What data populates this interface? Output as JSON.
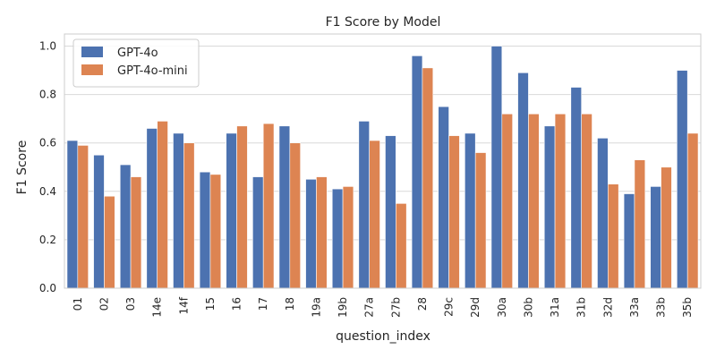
{
  "chart_data": {
    "type": "bar",
    "title": "F1 Score by Model",
    "xlabel": "question_index",
    "ylabel": "F1 Score",
    "ylim": [
      0,
      1.05
    ],
    "yticks": [
      "0.0",
      "0.2",
      "0.4",
      "0.6",
      "0.8",
      "1.0"
    ],
    "grid": "horizontal",
    "legend_position": "top-left",
    "categories": [
      "01",
      "02",
      "03",
      "14e",
      "14f",
      "15",
      "16",
      "17",
      "18",
      "19a",
      "19b",
      "27a",
      "27b",
      "28",
      "29c",
      "29d",
      "30a",
      "30b",
      "31a",
      "31b",
      "32d",
      "33a",
      "33b",
      "35b"
    ],
    "series": [
      {
        "name": "GPT-4o",
        "color": "#4c72b0",
        "values": [
          0.61,
          0.55,
          0.51,
          0.66,
          0.64,
          0.48,
          0.64,
          0.46,
          0.67,
          0.45,
          0.41,
          0.69,
          0.63,
          0.96,
          0.75,
          0.64,
          1.0,
          0.89,
          0.67,
          0.83,
          0.62,
          0.39,
          0.42,
          0.9
        ]
      },
      {
        "name": "GPT-4o-mini",
        "color": "#dd8452",
        "values": [
          0.59,
          0.38,
          0.46,
          0.69,
          0.6,
          0.47,
          0.67,
          0.68,
          0.6,
          0.46,
          0.42,
          0.61,
          0.35,
          0.91,
          0.63,
          0.56,
          0.72,
          0.72,
          0.72,
          0.72,
          0.43,
          0.53,
          0.5,
          0.64
        ]
      }
    ]
  }
}
